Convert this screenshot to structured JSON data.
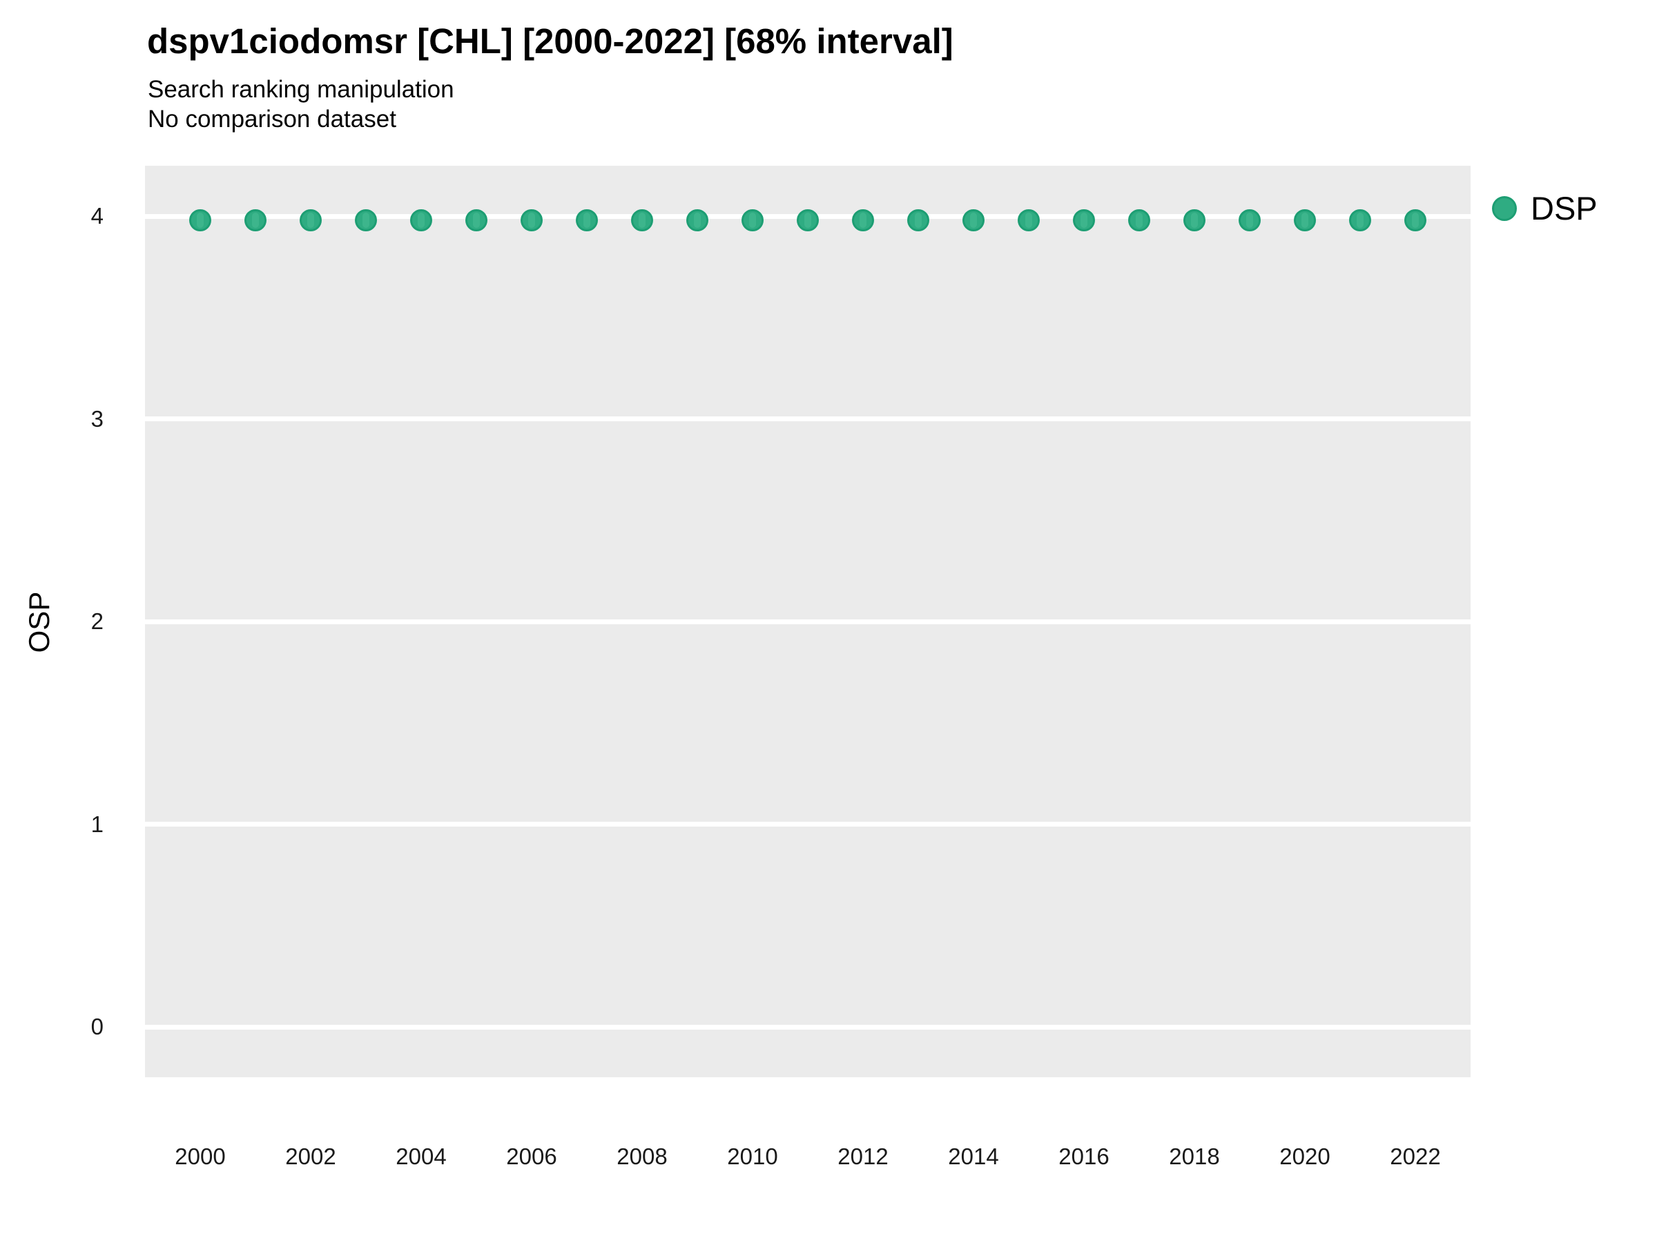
{
  "title": "dspv1ciodomsr [CHL] [2000-2022] [68% interval]",
  "subtitle_line1": "Search ranking manipulation",
  "subtitle_line2": "No comparison dataset",
  "y_axis_title": "OSP",
  "legend": {
    "label": "DSP"
  },
  "colors": {
    "panel_background": "#EBEBEB",
    "gridline": "#FFFFFF",
    "point_fill": "#2FAC82",
    "point_stroke": "#1D9E73",
    "point_inner_bar": "#3DB58C",
    "tick_label_text": "#1a1a1a",
    "title_text": "#000000"
  },
  "chart_data": {
    "type": "scatter",
    "title": "dspv1ciodomsr [CHL] [2000-2022] [68% interval]",
    "subtitle": [
      "Search ranking manipulation",
      "No comparison dataset"
    ],
    "xlabel": "",
    "ylabel": "OSP",
    "interval_note": "68% interval",
    "x": [
      2000,
      2001,
      2002,
      2003,
      2004,
      2005,
      2006,
      2007,
      2008,
      2009,
      2010,
      2011,
      2012,
      2013,
      2014,
      2015,
      2016,
      2017,
      2018,
      2019,
      2020,
      2021,
      2022
    ],
    "series": [
      {
        "name": "DSP",
        "values": [
          3.98,
          3.98,
          3.98,
          3.98,
          3.98,
          3.98,
          3.98,
          3.98,
          3.98,
          3.98,
          3.98,
          3.98,
          3.98,
          3.98,
          3.98,
          3.98,
          3.98,
          3.98,
          3.98,
          3.98,
          3.98,
          3.98,
          3.98
        ]
      }
    ],
    "ylim": [
      -0.25,
      4.25
    ],
    "yticks": [
      0,
      1,
      2,
      3,
      4
    ],
    "xticks": [
      2000,
      2002,
      2004,
      2006,
      2008,
      2010,
      2012,
      2014,
      2016,
      2018,
      2020,
      2022
    ],
    "grid": "horizontal-major-only",
    "legend_position": "right-top"
  }
}
